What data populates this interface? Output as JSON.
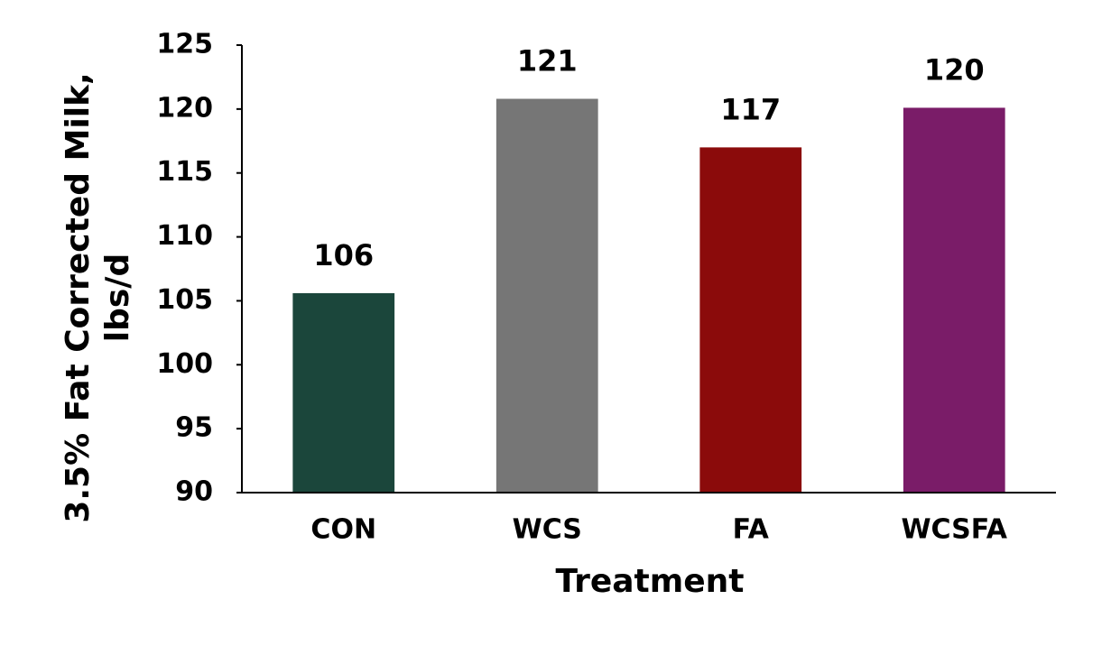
{
  "chart_data": {
    "type": "bar",
    "x_label": "Treatment",
    "y_label_lines": [
      "3.5% Fat Corrected Milk,",
      "lbs/d"
    ],
    "categories": [
      "CON",
      "WCS",
      "FA",
      "WCSFA"
    ],
    "values": [
      105.6,
      120.8,
      117,
      120.1
    ],
    "value_labels": [
      "106",
      "121",
      "117",
      "120"
    ],
    "colors": [
      "#1b463b",
      "#767676",
      "#8b0b0b",
      "#7a1c68"
    ],
    "ylim": [
      90,
      125
    ],
    "yticks": [
      90,
      95,
      100,
      105,
      110,
      115,
      120,
      125
    ],
    "grid": false
  }
}
